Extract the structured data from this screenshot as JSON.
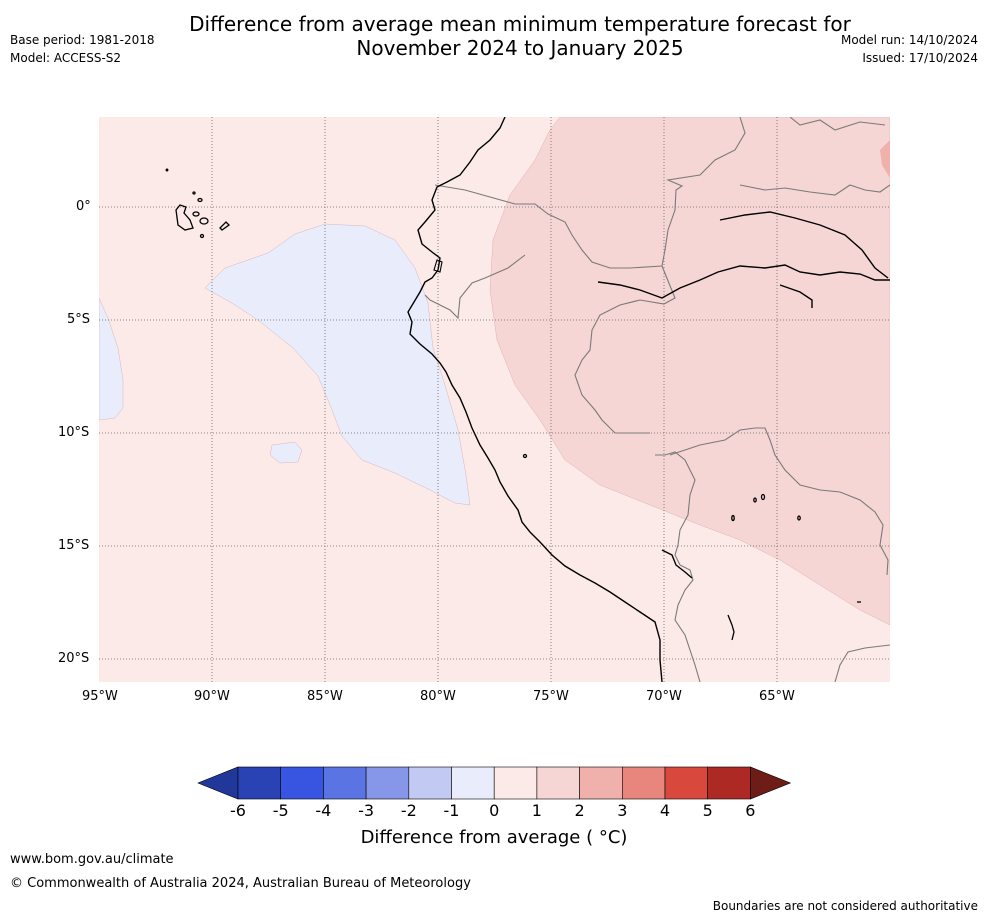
{
  "header": {
    "title": "Difference from average mean minimum temperature forecast for\nNovember 2024 to January 2025",
    "base_period": "Base period: 1981-2018",
    "model": "Model: ACCESS-S2",
    "model_run": "Model run: 14/10/2024",
    "issued": "Issued: 17/10/2024"
  },
  "map": {
    "lat_labels": [
      "0°",
      "5°S",
      "10°S",
      "15°S",
      "20°S"
    ],
    "lon_labels": [
      "95°W",
      "90°W",
      "85°W",
      "80°W",
      "75°W",
      "70°W",
      "65°W"
    ],
    "ocean_color": "#fbeae8",
    "cool_anomaly_color": "#e8ecfb",
    "warm_anomaly_color": "#f5d6d4",
    "strong_warm_color": "#f0b0ac"
  },
  "colorbar": {
    "ticks": [
      "-6",
      "-5",
      "-4",
      "-3",
      "-2",
      "-1",
      "0",
      "1",
      "2",
      "3",
      "4",
      "5",
      "6"
    ],
    "colors": [
      "#22379a",
      "#2a43b4",
      "#3755e0",
      "#5b74e3",
      "#8696e8",
      "#c2c9f3",
      "#e8ecfb",
      "#fbeae8",
      "#f5d6d4",
      "#f0b0ac",
      "#e8867e",
      "#d9483d",
      "#ad2a24",
      "#6e1c17"
    ],
    "label": "Difference from average ( °C)"
  },
  "footer": {
    "website": "www.bom.gov.au/climate",
    "copyright": "© Commonwealth of Australia 2024, Australian Bureau of Meteorology",
    "disclaimer": "Boundaries are not considered authoritative"
  }
}
